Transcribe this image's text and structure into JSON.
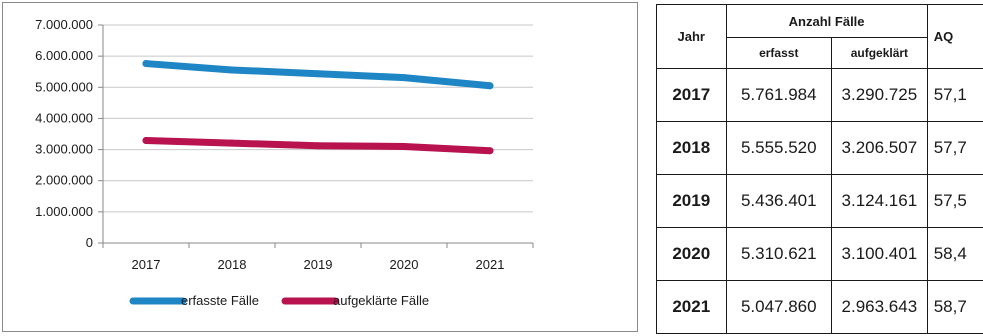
{
  "chart_data": {
    "type": "line",
    "categories": [
      "2017",
      "2018",
      "2019",
      "2020",
      "2021"
    ],
    "series": [
      {
        "name": "erfasste Fälle",
        "color": "#1f86c6",
        "values": [
          5761984,
          5555520,
          5436401,
          5310621,
          5047860
        ]
      },
      {
        "name": "aufgeklärte Fälle",
        "color": "#b8124f",
        "values": [
          3290725,
          3206507,
          3124161,
          3100401,
          2963643
        ]
      }
    ],
    "ylim": [
      0,
      7000000
    ],
    "yticks": [
      "0",
      "1.000.000",
      "2.000.000",
      "3.000.000",
      "4.000.000",
      "5.000.000",
      "6.000.000",
      "7.000.000"
    ],
    "grid": true,
    "legend_position": "bottom"
  },
  "table": {
    "header_year": "Jahr",
    "header_group": "Anzahl Fälle",
    "header_recorded": "erfasst",
    "header_solved": "aufgeklärt",
    "header_aq": "AQ",
    "rows": [
      {
        "year": "2017",
        "recorded": "5.761.984",
        "solved": "3.290.725",
        "aq": "57,1"
      },
      {
        "year": "2018",
        "recorded": "5.555.520",
        "solved": "3.206.507",
        "aq": "57,7"
      },
      {
        "year": "2019",
        "recorded": "5.436.401",
        "solved": "3.124.161",
        "aq": "57,5"
      },
      {
        "year": "2020",
        "recorded": "5.310.621",
        "solved": "3.100.401",
        "aq": "58,4"
      },
      {
        "year": "2021",
        "recorded": "5.047.860",
        "solved": "2.963.643",
        "aq": "58,7"
      }
    ]
  }
}
